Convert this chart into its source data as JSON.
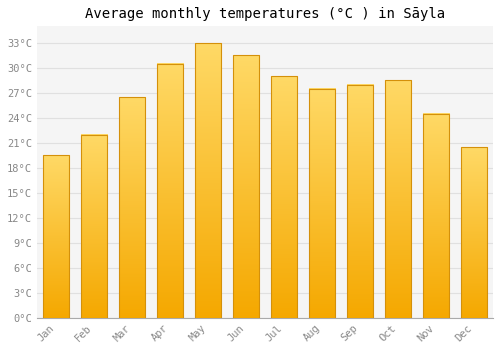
{
  "title": "Average monthly temperatures (°C ) in Sāyla",
  "months": [
    "Jan",
    "Feb",
    "Mar",
    "Apr",
    "May",
    "Jun",
    "Jul",
    "Aug",
    "Sep",
    "Oct",
    "Nov",
    "Dec"
  ],
  "temperatures": [
    19.5,
    22.0,
    26.5,
    30.5,
    33.0,
    31.5,
    29.0,
    27.5,
    28.0,
    28.5,
    24.5,
    20.5
  ],
  "bar_color_bottom": "#F5A800",
  "bar_color_top": "#FFD966",
  "bar_edge_color": "#D4900A",
  "background_color": "#ffffff",
  "plot_bg_color": "#f5f5f5",
  "grid_color": "#e0e0e0",
  "ytick_labels": [
    "0°C",
    "3°C",
    "6°C",
    "9°C",
    "12°C",
    "15°C",
    "18°C",
    "21°C",
    "24°C",
    "27°C",
    "30°C",
    "33°C"
  ],
  "ytick_values": [
    0,
    3,
    6,
    9,
    12,
    15,
    18,
    21,
    24,
    27,
    30,
    33
  ],
  "ylim": [
    0,
    35
  ],
  "title_fontsize": 10,
  "tick_fontsize": 7.5,
  "tick_color": "#888888",
  "font_family": "monospace"
}
